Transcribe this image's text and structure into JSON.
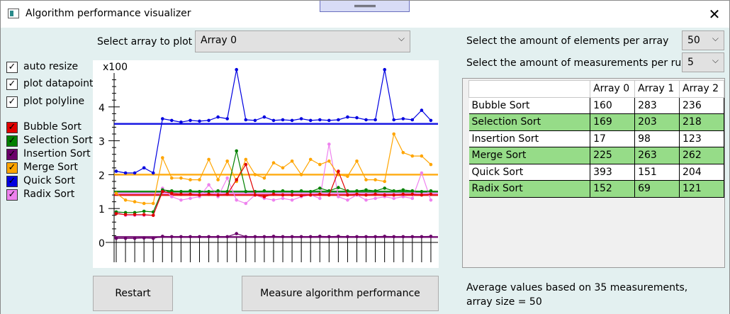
{
  "window": {
    "title": "Algorithm performance visualizer",
    "close_glyph": "✕"
  },
  "controls": {
    "select_array_label": "Select array to plot",
    "selected_array": "Array 0",
    "elements_label": "Select the amount of elements per array",
    "elements_value": "50",
    "measurements_label": "Select the amount of measurements per run",
    "measurements_value": "5",
    "chevron": "⌵"
  },
  "checkboxes": {
    "auto_resize": "auto resize",
    "plot_datapoints": "plot datapoints",
    "plot_polyline": "plot polyline",
    "check_glyph": "✓"
  },
  "legend": [
    {
      "label": "Bubble Sort",
      "color": "#e00000"
    },
    {
      "label": "Selection Sort",
      "color": "#008000"
    },
    {
      "label": "Insertion Sort",
      "color": "#6a006a"
    },
    {
      "label": "Merge Sort",
      "color": "#ffa500"
    },
    {
      "label": "Quick Sort",
      "color": "#0000e0"
    },
    {
      "label": "Radix Sort",
      "color": "#ee82ee"
    }
  ],
  "chart_data": {
    "type": "line",
    "multiplier_label": "x100",
    "y_tick_labels": [
      "0",
      "1",
      "2",
      "3",
      "4"
    ],
    "ylim": [
      0,
      5
    ],
    "x_count": 35,
    "series": [
      {
        "name": "Bubble Sort",
        "color": "#e00000",
        "average": 1.4,
        "values": [
          0.85,
          0.82,
          0.82,
          0.82,
          0.8,
          1.5,
          1.45,
          1.42,
          1.42,
          1.4,
          1.42,
          1.4,
          1.42,
          1.85,
          2.3,
          1.4,
          1.35,
          1.42,
          1.4,
          1.4,
          1.38,
          1.4,
          1.42,
          1.4,
          2.1,
          1.4,
          1.42,
          1.4,
          1.42,
          1.4,
          1.4,
          1.42,
          1.42,
          1.4,
          1.42
        ]
      },
      {
        "name": "Selection Sort",
        "color": "#008000",
        "average": 1.5,
        "values": [
          0.9,
          0.88,
          0.88,
          0.92,
          0.9,
          1.55,
          1.52,
          1.5,
          1.52,
          1.5,
          1.5,
          1.52,
          1.5,
          2.7,
          1.5,
          1.5,
          1.52,
          1.5,
          1.52,
          1.5,
          1.52,
          1.5,
          1.6,
          1.52,
          1.62,
          1.52,
          1.52,
          1.55,
          1.52,
          1.6,
          1.52,
          1.55,
          1.52,
          1.5,
          1.52
        ]
      },
      {
        "name": "Insertion Sort",
        "color": "#6a006a",
        "average": 0.16,
        "values": [
          0.12,
          0.12,
          0.12,
          0.13,
          0.12,
          0.18,
          0.17,
          0.17,
          0.17,
          0.17,
          0.17,
          0.17,
          0.17,
          0.26,
          0.17,
          0.17,
          0.17,
          0.18,
          0.17,
          0.17,
          0.17,
          0.17,
          0.18,
          0.17,
          0.18,
          0.17,
          0.17,
          0.17,
          0.17,
          0.18,
          0.17,
          0.17,
          0.17,
          0.17,
          0.18
        ]
      },
      {
        "name": "Merge Sort",
        "color": "#ffa500",
        "average": 2.0,
        "values": [
          1.45,
          1.25,
          1.2,
          1.15,
          1.15,
          2.5,
          1.9,
          1.9,
          1.85,
          1.85,
          2.45,
          1.85,
          2.4,
          1.8,
          2.45,
          2.0,
          1.9,
          2.35,
          2.2,
          2.4,
          2.0,
          2.45,
          2.3,
          2.4,
          2.0,
          1.95,
          2.4,
          1.85,
          1.85,
          1.8,
          3.2,
          2.65,
          2.55,
          2.55,
          2.3
        ]
      },
      {
        "name": "Quick Sort",
        "color": "#0000e0",
        "average": 3.5,
        "values": [
          2.1,
          2.05,
          2.05,
          2.2,
          2.05,
          3.65,
          3.6,
          3.55,
          3.6,
          3.58,
          3.6,
          3.7,
          3.65,
          5.1,
          3.62,
          3.6,
          3.7,
          3.6,
          3.62,
          3.6,
          3.65,
          3.6,
          3.62,
          3.6,
          3.62,
          3.7,
          3.68,
          3.62,
          3.62,
          5.1,
          3.62,
          3.65,
          3.62,
          3.9,
          3.6
        ]
      },
      {
        "name": "Radix Sort",
        "color": "#ee82ee",
        "average": 1.45,
        "values": [
          0.9,
          0.8,
          0.8,
          0.8,
          0.8,
          1.6,
          1.35,
          1.25,
          1.3,
          1.35,
          1.7,
          1.35,
          1.9,
          1.25,
          1.15,
          1.4,
          1.3,
          1.25,
          1.3,
          1.25,
          1.35,
          1.4,
          1.3,
          2.9,
          1.35,
          1.25,
          1.4,
          1.25,
          1.3,
          1.35,
          1.3,
          1.35,
          1.3,
          2.05,
          1.25
        ]
      }
    ]
  },
  "table": {
    "headers": [
      "",
      "Array 0",
      "Array 1",
      "Array 2"
    ],
    "rows": [
      [
        "Bubble Sort",
        "160",
        "283",
        "236"
      ],
      [
        "Selection Sort",
        "169",
        "203",
        "218"
      ],
      [
        "Insertion Sort",
        "17",
        "98",
        "123"
      ],
      [
        "Merge Sort",
        "225",
        "263",
        "262"
      ],
      [
        "Quick Sort",
        "393",
        "151",
        "204"
      ],
      [
        "Radix Sort",
        "152",
        "69",
        "121"
      ]
    ],
    "alt_color": "#96dc88"
  },
  "buttons": {
    "restart": "Restart",
    "measure": "Measure algorithm performance"
  },
  "status": {
    "line1": "Average values based on 35 measurements,",
    "line2": "array size = 50"
  }
}
